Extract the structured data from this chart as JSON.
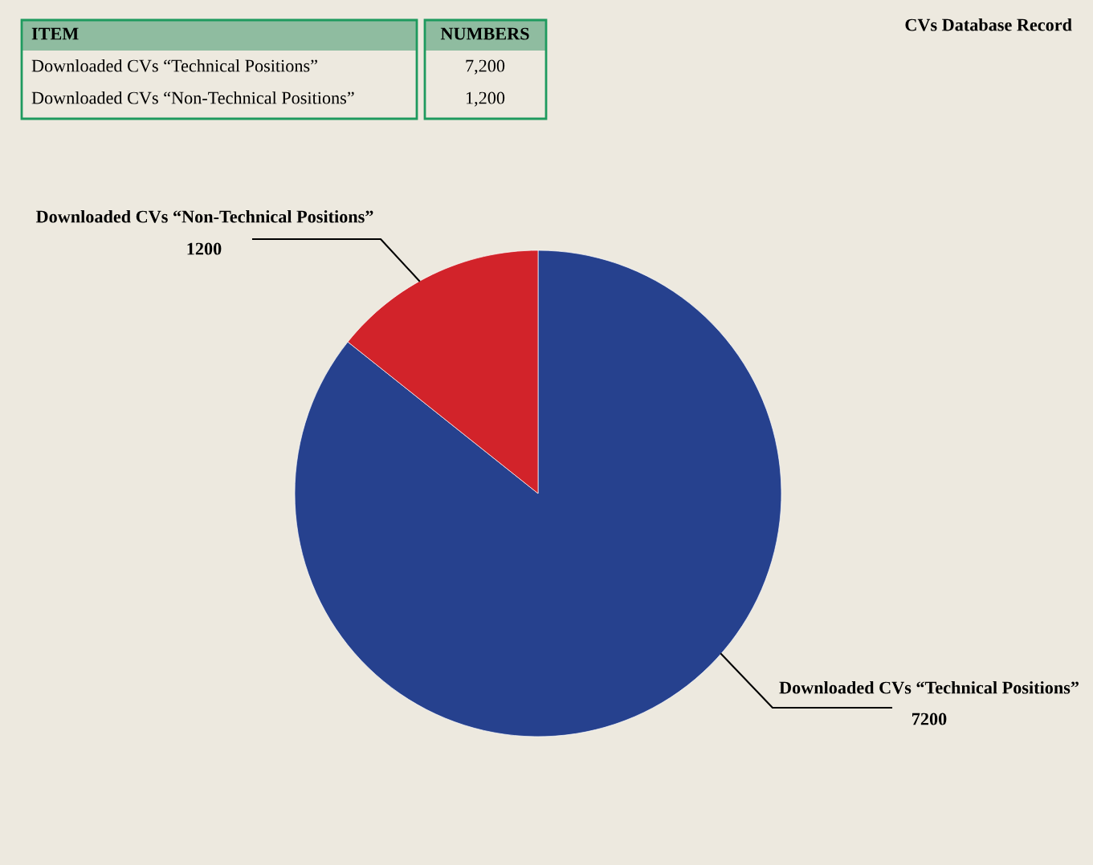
{
  "chart_data": {
    "type": "pie",
    "title": "CVs Database Record",
    "categories": [
      "Downloaded CVs “Technical Positions”",
      "Downloaded CVs “Non-Technical Positions”"
    ],
    "values": [
      7200,
      1200
    ],
    "colors": [
      "#26418e",
      "#d2232a"
    ],
    "value_labels": [
      "7200",
      "1200"
    ],
    "annotations": [
      "ITEM",
      "NUMBERS",
      "7,200",
      "1,200"
    ]
  }
}
